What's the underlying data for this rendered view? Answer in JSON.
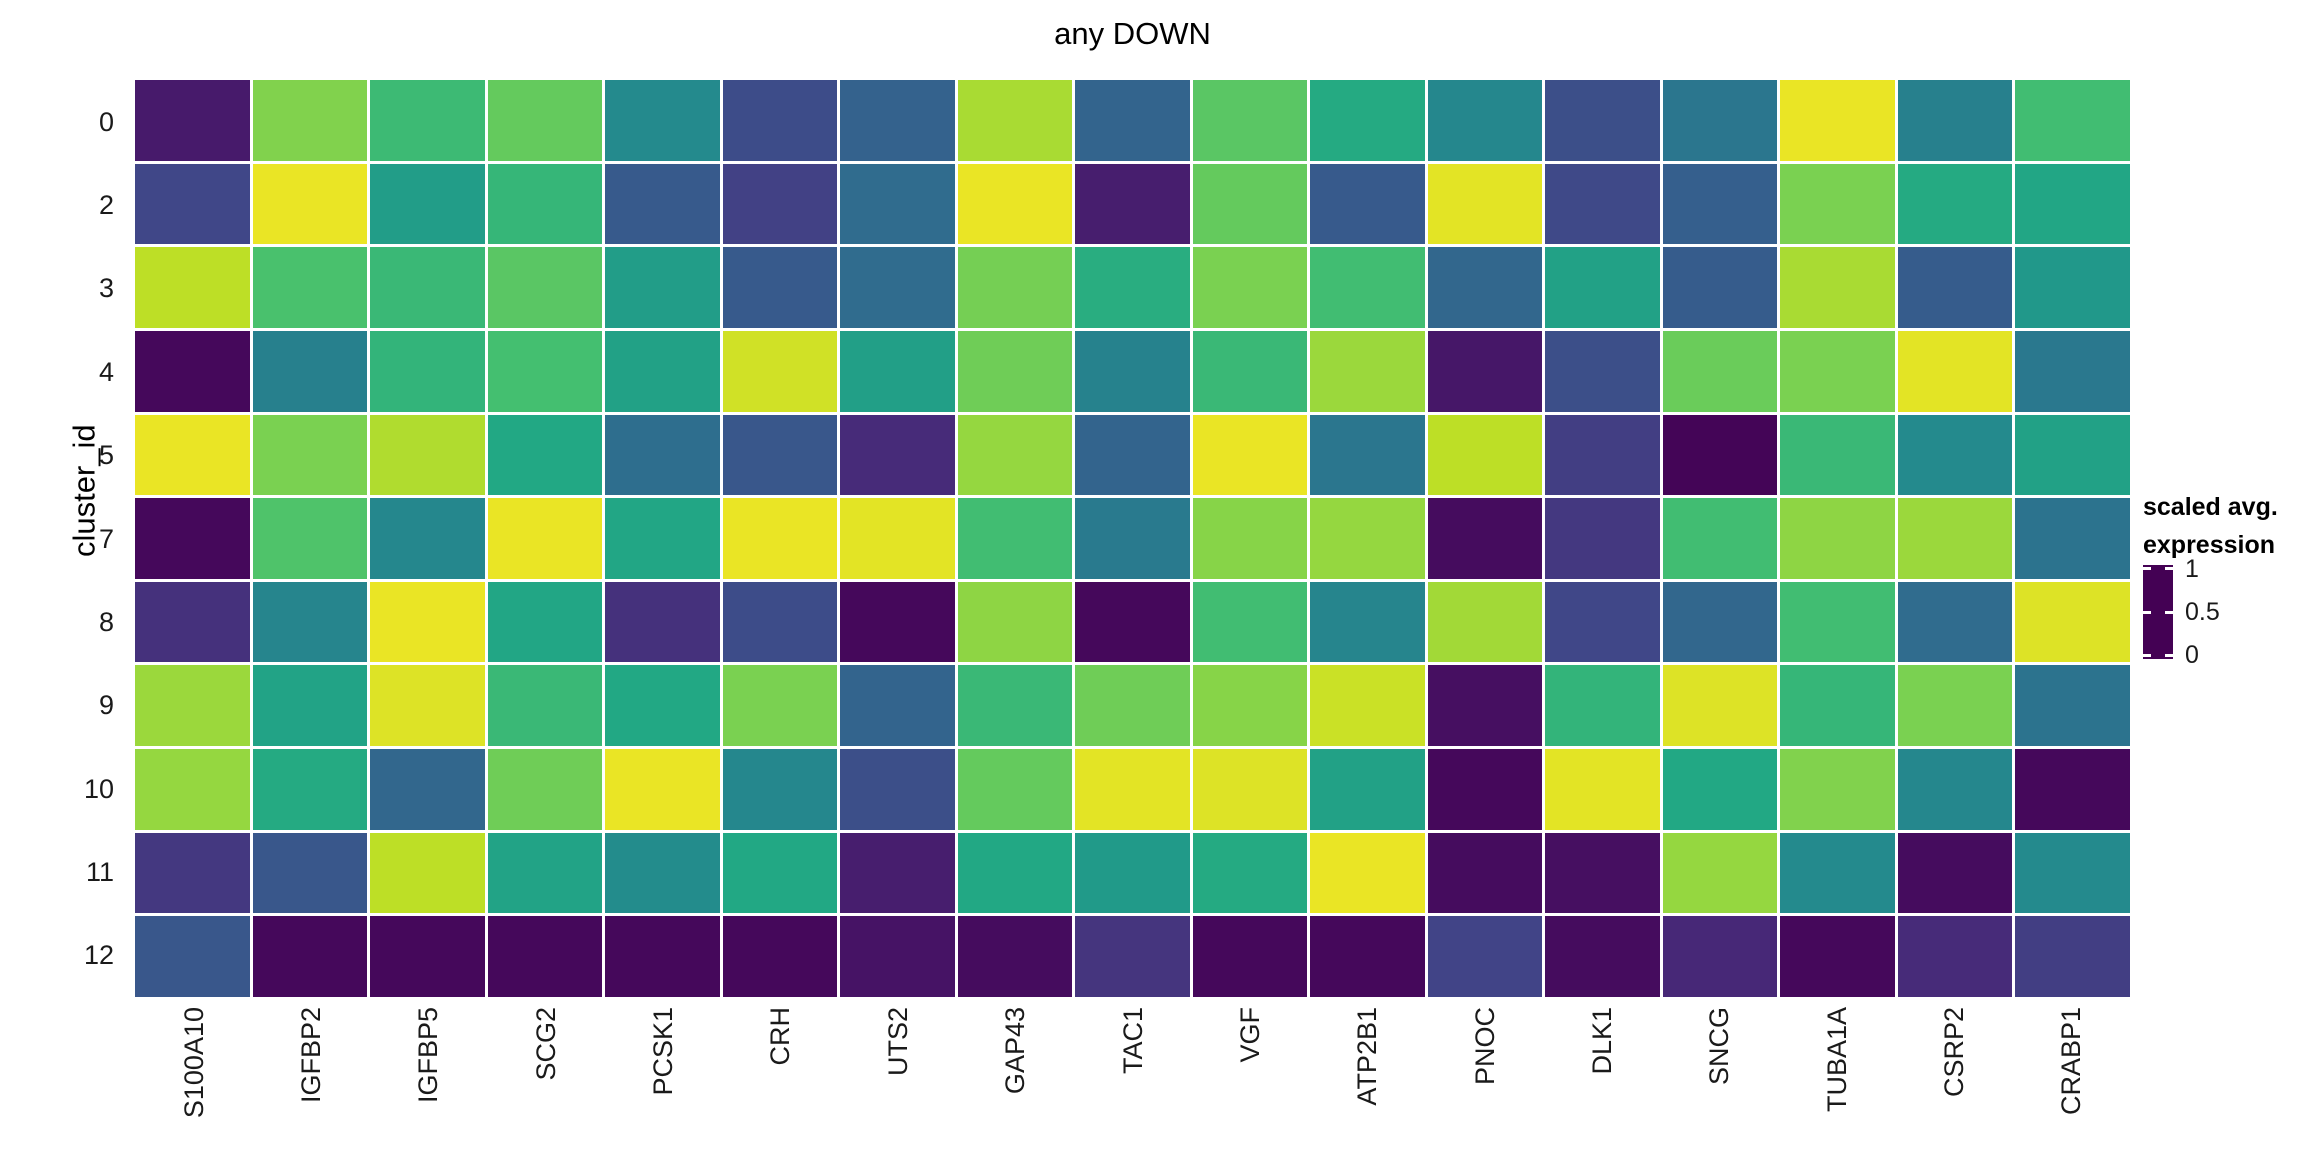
{
  "title": "any DOWN",
  "legend": {
    "title_line1": "scaled avg.",
    "title_line2": "expression",
    "tick_labels": [
      "1",
      "0.5",
      "0"
    ],
    "tick_positions": [
      0.96,
      0.5,
      0.04
    ]
  },
  "colors": {
    "background": "#ffffff",
    "text": "#000000",
    "viridis_stops": [
      {
        "t": 0.0,
        "hex": "#440154"
      },
      {
        "t": 0.1,
        "hex": "#482575"
      },
      {
        "t": 0.2,
        "hex": "#414487"
      },
      {
        "t": 0.3,
        "hex": "#355f8d"
      },
      {
        "t": 0.4,
        "hex": "#2a788e"
      },
      {
        "t": 0.5,
        "hex": "#21918c"
      },
      {
        "t": 0.6,
        "hex": "#22a884"
      },
      {
        "t": 0.7,
        "hex": "#44bf70"
      },
      {
        "t": 0.8,
        "hex": "#7ad151"
      },
      {
        "t": 0.9,
        "hex": "#bddf26"
      },
      {
        "t": 1.0,
        "hex": "#fde725"
      }
    ]
  },
  "chart_data": {
    "type": "heatmap",
    "title": "any DOWN",
    "xlabel": "",
    "ylabel": "cluster_id",
    "colormap": "viridis",
    "value_range": [
      0,
      1
    ],
    "legend_title": "scaled avg. expression",
    "legend_ticks": [
      1,
      0.5,
      0
    ],
    "rows": [
      "0",
      "2",
      "3",
      "4",
      "5",
      "7",
      "8",
      "9",
      "10",
      "11",
      "12"
    ],
    "columns": [
      "S100A10",
      "IGFBP2",
      "IGFBP5",
      "SCG2",
      "PCSK1",
      "CRH",
      "UTS2",
      "GAP43",
      "TAC1",
      "VGF",
      "ATP2B1",
      "PNOC",
      "DLK1",
      "SNCG",
      "TUBA1A",
      "CSRP2",
      "CRABP1"
    ],
    "values": [
      [
        0.07,
        0.81,
        0.68,
        0.76,
        0.47,
        0.23,
        0.31,
        0.87,
        0.32,
        0.74,
        0.61,
        0.46,
        0.24,
        0.39,
        0.97,
        0.43,
        0.69
      ],
      [
        0.21,
        0.97,
        0.55,
        0.66,
        0.28,
        0.19,
        0.35,
        0.97,
        0.08,
        0.76,
        0.28,
        0.96,
        0.22,
        0.3,
        0.8,
        0.61,
        0.59
      ],
      [
        0.9,
        0.71,
        0.67,
        0.74,
        0.55,
        0.28,
        0.35,
        0.79,
        0.62,
        0.8,
        0.69,
        0.33,
        0.57,
        0.29,
        0.87,
        0.29,
        0.53
      ],
      [
        0.02,
        0.43,
        0.65,
        0.7,
        0.57,
        0.93,
        0.56,
        0.78,
        0.44,
        0.67,
        0.85,
        0.06,
        0.24,
        0.77,
        0.8,
        0.96,
        0.4
      ],
      [
        0.97,
        0.8,
        0.88,
        0.6,
        0.36,
        0.27,
        0.12,
        0.84,
        0.32,
        0.97,
        0.39,
        0.9,
        0.18,
        0.01,
        0.67,
        0.47,
        0.57
      ],
      [
        0.02,
        0.72,
        0.46,
        0.97,
        0.59,
        0.97,
        0.96,
        0.69,
        0.41,
        0.82,
        0.84,
        0.03,
        0.16,
        0.69,
        0.83,
        0.85,
        0.38
      ],
      [
        0.14,
        0.45,
        0.97,
        0.59,
        0.14,
        0.23,
        0.02,
        0.83,
        0.02,
        0.69,
        0.45,
        0.86,
        0.21,
        0.33,
        0.69,
        0.35,
        0.95
      ],
      [
        0.85,
        0.58,
        0.95,
        0.67,
        0.6,
        0.8,
        0.32,
        0.67,
        0.78,
        0.82,
        0.92,
        0.04,
        0.65,
        0.95,
        0.66,
        0.8,
        0.38
      ],
      [
        0.84,
        0.61,
        0.33,
        0.78,
        0.97,
        0.46,
        0.24,
        0.76,
        0.96,
        0.95,
        0.57,
        0.02,
        0.96,
        0.6,
        0.81,
        0.46,
        0.02
      ],
      [
        0.16,
        0.27,
        0.9,
        0.58,
        0.48,
        0.6,
        0.08,
        0.6,
        0.54,
        0.61,
        0.97,
        0.03,
        0.04,
        0.84,
        0.47,
        0.03,
        0.47
      ],
      [
        0.27,
        0.02,
        0.02,
        0.02,
        0.02,
        0.02,
        0.05,
        0.03,
        0.15,
        0.02,
        0.02,
        0.2,
        0.03,
        0.11,
        0.02,
        0.12,
        0.18
      ]
    ]
  }
}
